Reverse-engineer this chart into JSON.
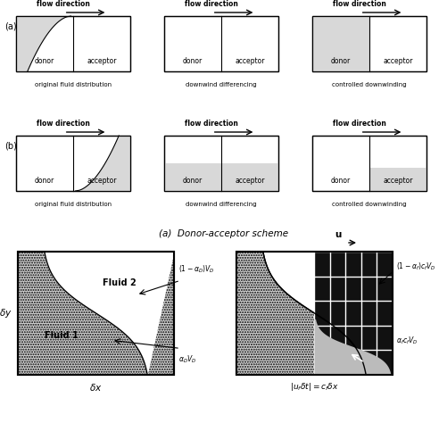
{
  "fig_w": 5.02,
  "fig_h": 4.83,
  "dpi": 100,
  "bg": "#ffffff",
  "dot_fill": "#d8d8d8",
  "white": "#ffffff",
  "dark_grid": "#111111",
  "gray_fill": "#cccccc",
  "caption": "(a)  Donor-acceptor scheme",
  "label_a": "(a)",
  "label_b": "(b)",
  "col_captions_a": [
    "original fluid distribution",
    "downwind differencing",
    "controlled downwinding"
  ],
  "col_captions_b": [
    "original fluid distribution",
    "downwind differencing",
    "controlled downwinding"
  ],
  "left_ann_top": "(1-α_D)V_D",
  "left_ann_bot": "α_D V_D",
  "right_ann_top": "(1-α_f)c_f V_D",
  "right_ann_bot": "α_f c_f V_D",
  "left_xlabel": "δx",
  "left_ylabel": "δy",
  "right_xlabel": "|u_fδt| = c_fδx",
  "right_u_label": "u"
}
